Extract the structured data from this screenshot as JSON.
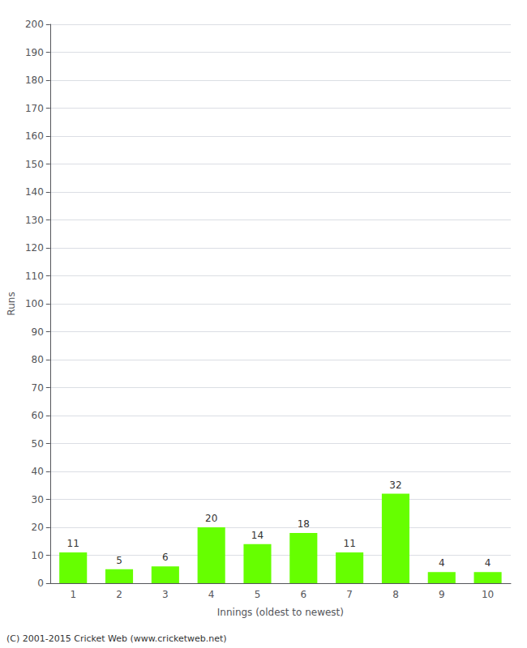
{
  "chart_data": {
    "type": "bar",
    "xlabel": "Innings (oldest to newest)",
    "ylabel": "Runs",
    "categories": [
      "1",
      "2",
      "3",
      "4",
      "5",
      "6",
      "7",
      "8",
      "9",
      "10"
    ],
    "values": [
      11,
      5,
      6,
      20,
      14,
      18,
      11,
      32,
      4,
      4
    ],
    "color": "#66ff00",
    "ylim": [
      0,
      200
    ],
    "yticks": [
      0,
      10,
      20,
      30,
      40,
      50,
      60,
      70,
      80,
      90,
      100,
      110,
      120,
      130,
      140,
      150,
      160,
      170,
      180,
      190,
      200
    ],
    "grid": true,
    "data_labels": true,
    "annotation": "(C) 2001-2015 Cricket Web (www.cricketweb.net)"
  }
}
